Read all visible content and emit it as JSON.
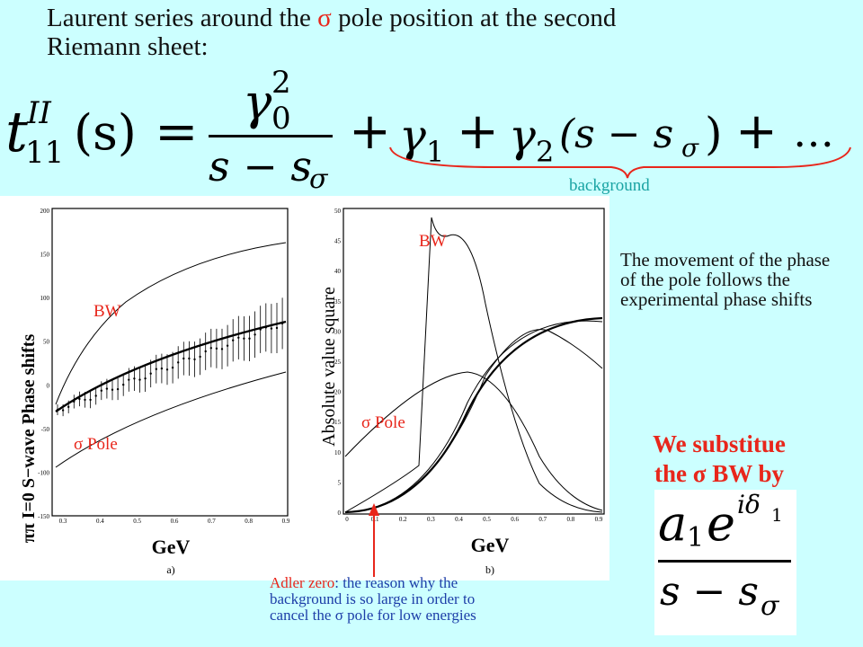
{
  "title": {
    "line1_pre": "Laurent series around the ",
    "sigma": "σ",
    "line1_post": " pole position at the second",
    "line2": "Riemann sheet:"
  },
  "formula": {
    "lhs_t": "t",
    "lhs_sup": "II",
    "lhs_sub": "11",
    "lhs_arg": "(s)",
    "equals": "=",
    "num": "γ",
    "num_sup": "2",
    "num_sub": "0",
    "den": "s − s",
    "den_sub": "σ",
    "plus1": "+",
    "g1": "γ",
    "g1_sub": "1",
    "plus2": "+",
    "g2": "γ",
    "g2_sub": "2",
    "g2_arg": "(s − s",
    "g2_arg_sub": "σ",
    "g2_close": ")",
    "plus3": "+",
    "dots": "…"
  },
  "background_label": "background",
  "movement_text": "The movement of the phase of the pole follows the experimental phase shifts",
  "substitute": {
    "line1": "We substitue",
    "line2_pre": "the ",
    "sigma": "σ",
    "line2_post": " BW by"
  },
  "sub_formula": {
    "num_a": "a",
    "num_a_sub": "1",
    "num_e": "e",
    "num_exp": "iδ",
    "num_exp_sub": "1",
    "den": "s − s",
    "den_sub": "σ"
  },
  "adler": {
    "pre": "Adler zero",
    "rest1": ": the reason why the",
    "line2": "background is so large in order to",
    "line3_pre": "cancel the ",
    "sigma": "σ",
    "line3_post": " pole for low energies"
  },
  "plot_a": {
    "ylabel": "ππ I=0 S−wave Phase shifts",
    "xlabel": "GeV",
    "panel_tag": "a)",
    "bw_label": "BW",
    "pole_label": "σ Pole",
    "yticks": [
      "200",
      "150",
      "100",
      "50",
      "0",
      "-50",
      "-100",
      "-150"
    ],
    "xticks": [
      "0.3",
      "0.4",
      "0.5",
      "0.6",
      "0.7",
      "0.8",
      "0.9"
    ]
  },
  "plot_b": {
    "ylabel": "Absolute value square",
    "xlabel": "GeV",
    "panel_tag": "b)",
    "bw_label": "BW",
    "pole_label": "σ Pole",
    "yticks": [
      "50",
      "45",
      "40",
      "35",
      "30",
      "25",
      "20",
      "15",
      "10",
      "5",
      "0"
    ],
    "xticks": [
      "0",
      "0.1",
      "0.2",
      "0.3",
      "0.4",
      "0.5",
      "0.6",
      "0.7",
      "0.8",
      "0.9"
    ]
  },
  "colors": {
    "background": "#ccffff",
    "accent_red": "#e8261b",
    "teal": "#1aa3a3",
    "blue": "#1d3ea8"
  }
}
